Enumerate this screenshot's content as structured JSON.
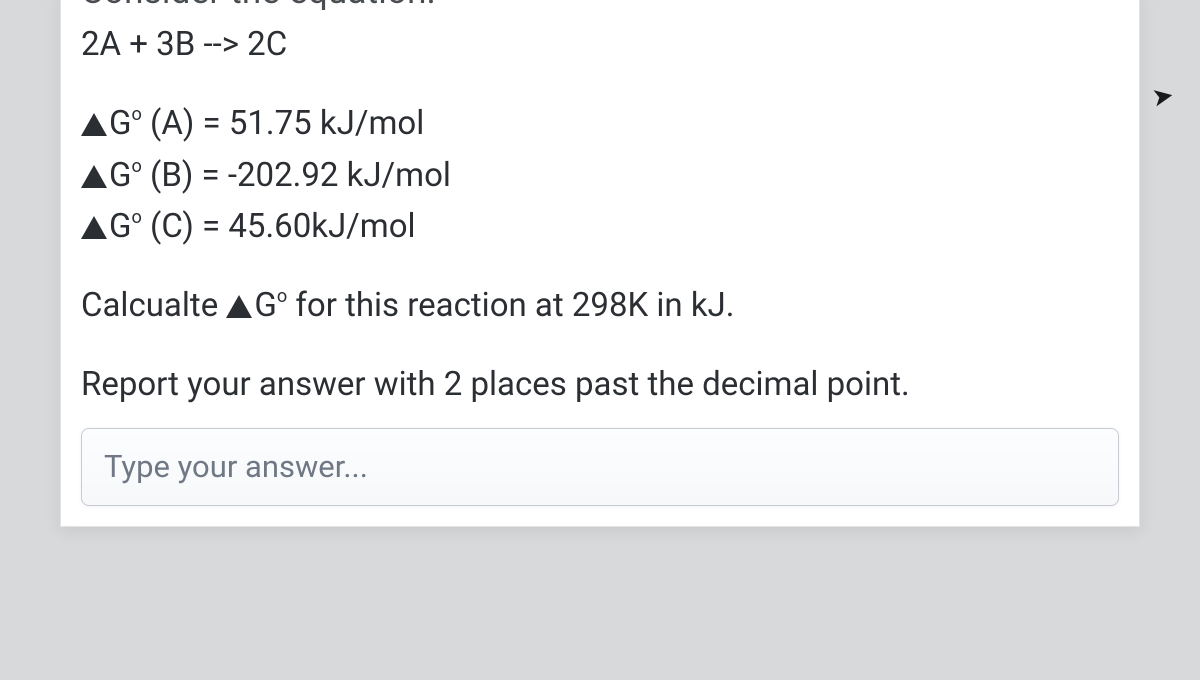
{
  "heading_cut": "Consider the equation:",
  "equation": "2A + 3B --> 2C",
  "gibbs": {
    "A": {
      "label": "(A) = 51.75 kJ/mol"
    },
    "B": {
      "label": "(B) = -202.92 kJ/mol"
    },
    "C": {
      "label": "(C) = 45.60kJ/mol"
    }
  },
  "prompt_prefix": "Calcualte ",
  "prompt_suffix": " for this reaction at 298K in kJ.",
  "report": "Report your answer with 2 places past the decimal point.",
  "answer_placeholder": "Type your answer...",
  "deg_symbol": "o",
  "G": "G"
}
